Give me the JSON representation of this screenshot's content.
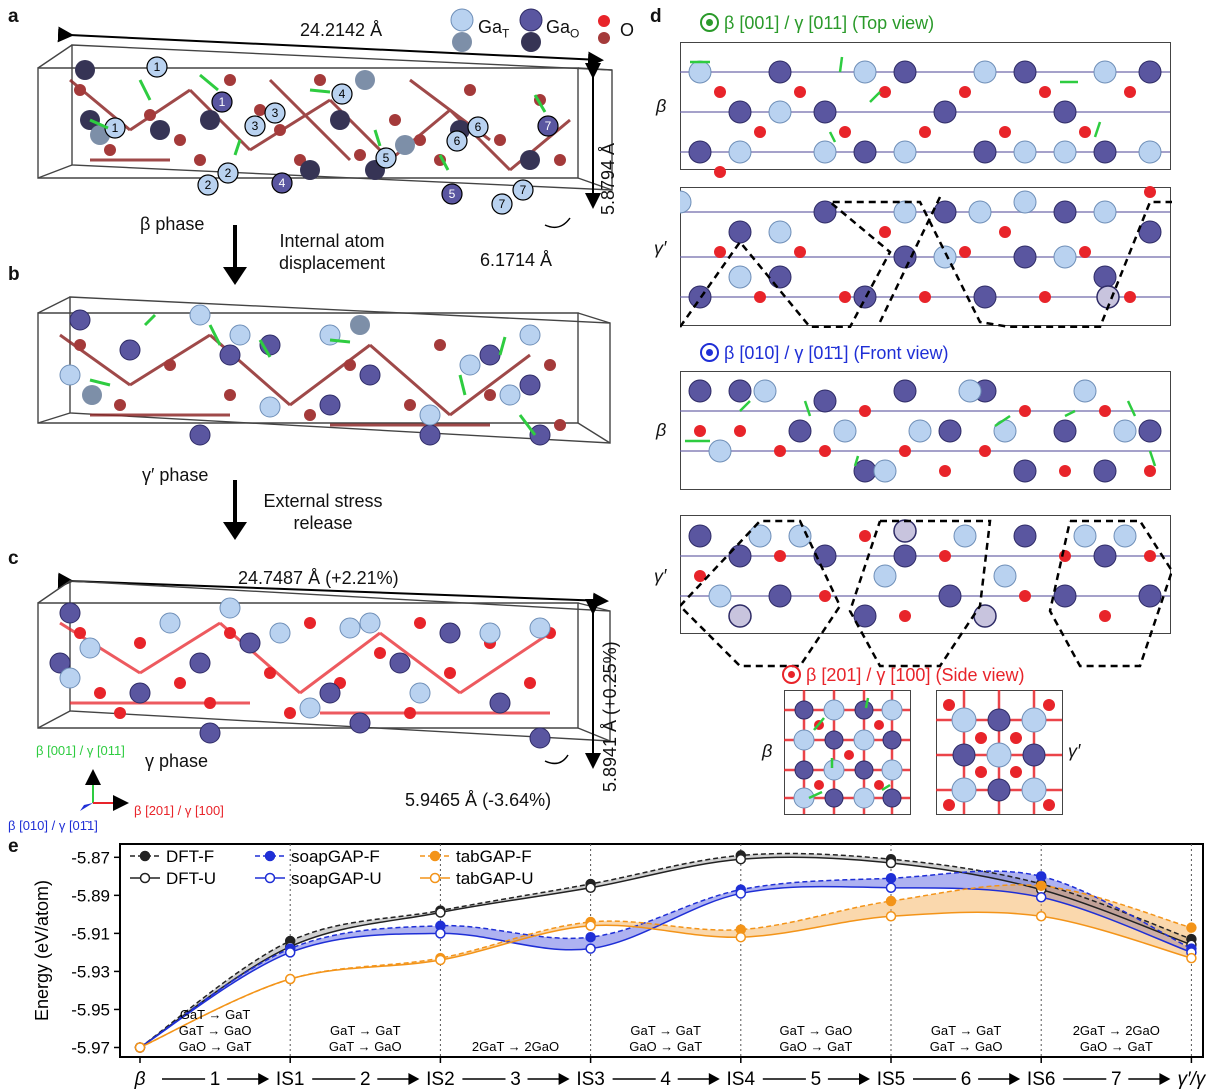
{
  "panels": {
    "a": {
      "label": "a",
      "length": "24.2142 Å",
      "height": "5.8794 Å",
      "depth": "6.1714 Å",
      "phase": "β phase"
    },
    "arrow1": "Internal atom displacement",
    "b": {
      "label": "b",
      "phase": "γ′ phase"
    },
    "arrow2": "External stress release",
    "c": {
      "label": "c",
      "length": "24.7487 Å (+2.21%)",
      "height": "5.8941 Å (+0.25%)",
      "depth": "5.9465 Å (-3.64%)",
      "phase": "γ phase",
      "axes": {
        "green": "β [001] / γ [011]",
        "red": "β [201] / γ [100]",
        "blue": "β [010] / γ [01̄1]"
      }
    },
    "legend": {
      "gat": "GaT",
      "gao": "GaO",
      "o": "O"
    },
    "d": {
      "label": "d",
      "top_title": "β [001] / γ [011] (Top view)",
      "front_title": "β [010] / γ [01̄1] (Front view)",
      "side_title": "β [201] / γ [100] (Side view)",
      "beta": "β",
      "gamma": "γ′"
    },
    "e": {
      "label": "e"
    }
  },
  "colors": {
    "gat": "#9dbde6",
    "gao": "#4e4a8a",
    "o": "#e8242a",
    "o_dark": "#a43a3a",
    "green": "#2ecc40",
    "dft": "#222222",
    "soap": "#1f2fd6",
    "tab": "#f39419"
  },
  "chart_data": {
    "type": "line",
    "ylabel": "Energy (eV/atom)",
    "ylim": [
      -5.975,
      -5.863
    ],
    "yticks": [
      -5.87,
      -5.89,
      -5.91,
      -5.93,
      -5.95,
      -5.97
    ],
    "x_labels": [
      "β",
      "IS1",
      "IS2",
      "IS3",
      "IS4",
      "IS5",
      "IS6",
      "γ′/γ"
    ],
    "step_labels": [
      "1",
      "2",
      "3",
      "4",
      "5",
      "6",
      "7"
    ],
    "step_notes": [
      [
        "GaT → GaT",
        "GaT → GaO",
        "GaO → GaT"
      ],
      [
        "GaT → GaT",
        "GaT → GaO"
      ],
      [
        "2GaT → 2GaO"
      ],
      [
        "GaT → GaT",
        "GaO → GaT"
      ],
      [
        "GaT → GaO",
        "GaO → GaT"
      ],
      [
        "GaT → GaT",
        "GaT → GaO"
      ],
      [
        "2GaT → 2GaO",
        "GaO → GaT"
      ]
    ],
    "series": [
      {
        "name": "DFT-F",
        "style": "filled-dashed",
        "color": "#222222",
        "values": [
          -5.97,
          -5.914,
          -5.898,
          -5.884,
          -5.869,
          -5.871,
          -5.884,
          -5.913
        ]
      },
      {
        "name": "DFT-U",
        "style": "open-solid",
        "color": "#222222",
        "values": [
          -5.97,
          -5.917,
          -5.899,
          -5.886,
          -5.871,
          -5.873,
          -5.887,
          -5.916
        ]
      },
      {
        "name": "soapGAP-F",
        "style": "filled-dashed",
        "color": "#1f2fd6",
        "values": [
          -5.97,
          -5.918,
          -5.906,
          -5.912,
          -5.887,
          -5.881,
          -5.88,
          -5.918
        ]
      },
      {
        "name": "soapGAP-U",
        "style": "open-solid",
        "color": "#1f2fd6",
        "values": [
          -5.97,
          -5.92,
          -5.91,
          -5.918,
          -5.889,
          -5.886,
          -5.891,
          -5.92
        ]
      },
      {
        "name": "tabGAP-F",
        "style": "filled-dashed",
        "color": "#f39419",
        "values": [
          -5.97,
          -5.934,
          -5.923,
          -5.904,
          -5.908,
          -5.893,
          -5.885,
          -5.907
        ]
      },
      {
        "name": "tabGAP-U",
        "style": "open-solid",
        "color": "#f39419",
        "values": [
          -5.97,
          -5.934,
          -5.924,
          -5.906,
          -5.912,
          -5.901,
          -5.901,
          -5.923
        ]
      }
    ]
  }
}
